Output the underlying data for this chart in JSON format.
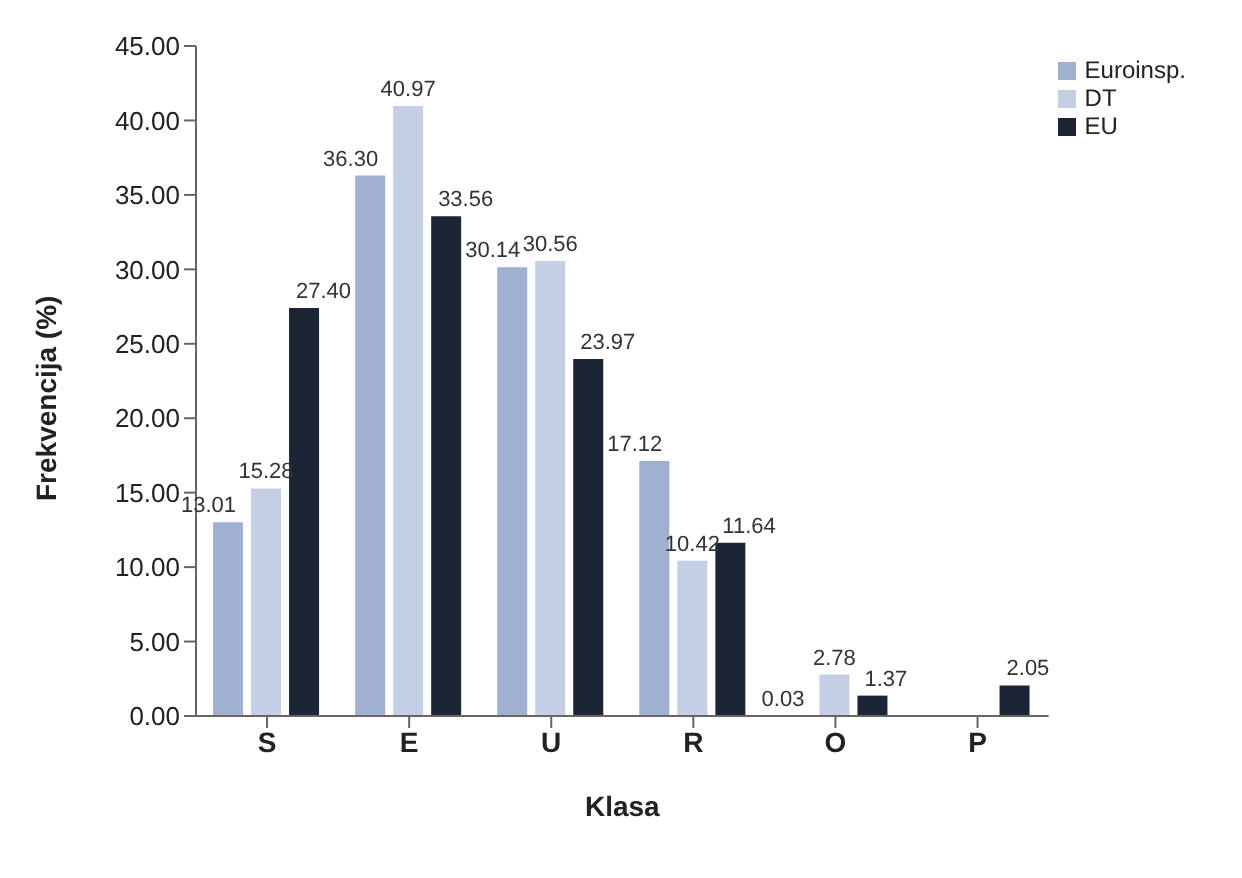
{
  "chart_data": {
    "type": "bar",
    "xlabel": "Klasa",
    "ylabel": "Frekvencija (%)",
    "categories": [
      "S",
      "E",
      "U",
      "R",
      "O",
      "P"
    ],
    "series": [
      {
        "name": "Euroinsp.",
        "color": "#9fb0d0",
        "values": [
          13.01,
          36.3,
          30.14,
          17.12,
          0.03,
          null
        ],
        "value_labels": [
          "13.01",
          "36.30",
          "30.14",
          "17.12",
          "0.03",
          null
        ]
      },
      {
        "name": "DT",
        "color": "#c5cfe4",
        "values": [
          15.28,
          40.97,
          30.56,
          10.42,
          2.78,
          null
        ],
        "value_labels": [
          "15.28",
          "40.97",
          "30.56",
          "10.42",
          "2.78",
          null
        ]
      },
      {
        "name": "EU",
        "color": "#1c2536",
        "values": [
          27.4,
          33.56,
          23.97,
          11.64,
          1.37,
          2.05
        ],
        "value_labels": [
          "27.40",
          "33.56",
          "23.97",
          "11.64",
          "1.37",
          "2.05"
        ]
      }
    ],
    "ylim": [
      0,
      45
    ],
    "yticks": [
      {
        "value": 0,
        "label": "0.00"
      },
      {
        "value": 5,
        "label": "5.00"
      },
      {
        "value": 10,
        "label": "10.00"
      },
      {
        "value": 15,
        "label": "15.00"
      },
      {
        "value": 20,
        "label": "20.00"
      },
      {
        "value": 25,
        "label": "25.00"
      },
      {
        "value": 30,
        "label": "30.00"
      },
      {
        "value": 35,
        "label": "35.00"
      },
      {
        "value": 40,
        "label": "40.00"
      },
      {
        "value": 45,
        "label": "45.00"
      }
    ],
    "grid": false,
    "legend": "top right"
  }
}
